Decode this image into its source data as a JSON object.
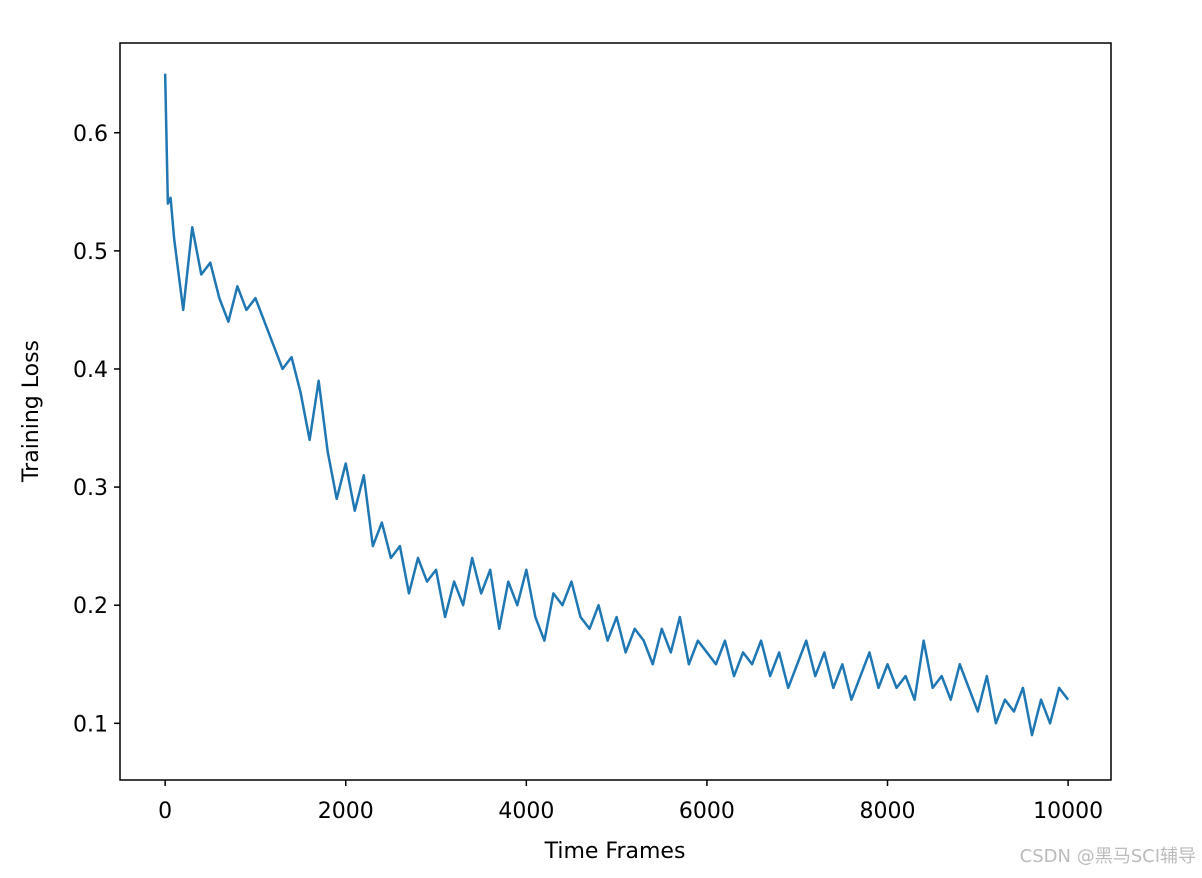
{
  "chart_data": {
    "type": "line",
    "x_label": "Time Frames",
    "y_label": "Training Loss",
    "watermark": "CSDN @黑马SCI辅导",
    "xlim": [
      -500,
      10475
    ],
    "ylim": [
      0.052,
      0.676
    ],
    "xticks": [
      0,
      2000,
      4000,
      6000,
      8000,
      10000
    ],
    "yticks": [
      0.1,
      0.2,
      0.3,
      0.4,
      0.5,
      0.6
    ],
    "x": [
      0,
      30,
      60,
      100,
      150,
      200,
      300,
      400,
      500,
      600,
      700,
      800,
      900,
      1000,
      1100,
      1200,
      1300,
      1400,
      1500,
      1600,
      1700,
      1800,
      1900,
      2000,
      2100,
      2200,
      2300,
      2400,
      2500,
      2600,
      2700,
      2800,
      2900,
      3000,
      3100,
      3200,
      3300,
      3400,
      3500,
      3600,
      3700,
      3800,
      3900,
      4000,
      4100,
      4200,
      4300,
      4400,
      4500,
      4600,
      4700,
      4800,
      4900,
      5000,
      5100,
      5200,
      5300,
      5400,
      5500,
      5600,
      5700,
      5800,
      5900,
      6000,
      6100,
      6200,
      6300,
      6400,
      6500,
      6600,
      6700,
      6800,
      6900,
      7000,
      7100,
      7200,
      7300,
      7400,
      7500,
      7600,
      7700,
      7800,
      7900,
      8000,
      8100,
      8200,
      8300,
      8400,
      8500,
      8600,
      8700,
      8800,
      8900,
      9000,
      9100,
      9200,
      9300,
      9400,
      9500,
      9600,
      9700,
      9800,
      9900,
      10000
    ],
    "series": [
      {
        "color": "#1f77b4",
        "values": [
          0.65,
          0.54,
          0.545,
          0.51,
          0.48,
          0.45,
          0.52,
          0.48,
          0.49,
          0.46,
          0.44,
          0.47,
          0.45,
          0.46,
          0.44,
          0.42,
          0.4,
          0.41,
          0.38,
          0.34,
          0.39,
          0.33,
          0.29,
          0.32,
          0.28,
          0.31,
          0.25,
          0.27,
          0.24,
          0.25,
          0.21,
          0.24,
          0.22,
          0.23,
          0.19,
          0.22,
          0.2,
          0.24,
          0.21,
          0.23,
          0.18,
          0.22,
          0.2,
          0.23,
          0.19,
          0.17,
          0.21,
          0.2,
          0.22,
          0.19,
          0.18,
          0.2,
          0.17,
          0.19,
          0.16,
          0.18,
          0.17,
          0.15,
          0.18,
          0.16,
          0.19,
          0.15,
          0.17,
          0.16,
          0.15,
          0.17,
          0.14,
          0.16,
          0.15,
          0.17,
          0.14,
          0.16,
          0.13,
          0.15,
          0.17,
          0.14,
          0.16,
          0.13,
          0.15,
          0.12,
          0.14,
          0.16,
          0.13,
          0.15,
          0.13,
          0.14,
          0.12,
          0.17,
          0.13,
          0.14,
          0.12,
          0.15,
          0.13,
          0.11,
          0.14,
          0.1,
          0.12,
          0.11,
          0.13,
          0.09,
          0.12,
          0.1,
          0.13,
          0.12
        ]
      }
    ]
  }
}
